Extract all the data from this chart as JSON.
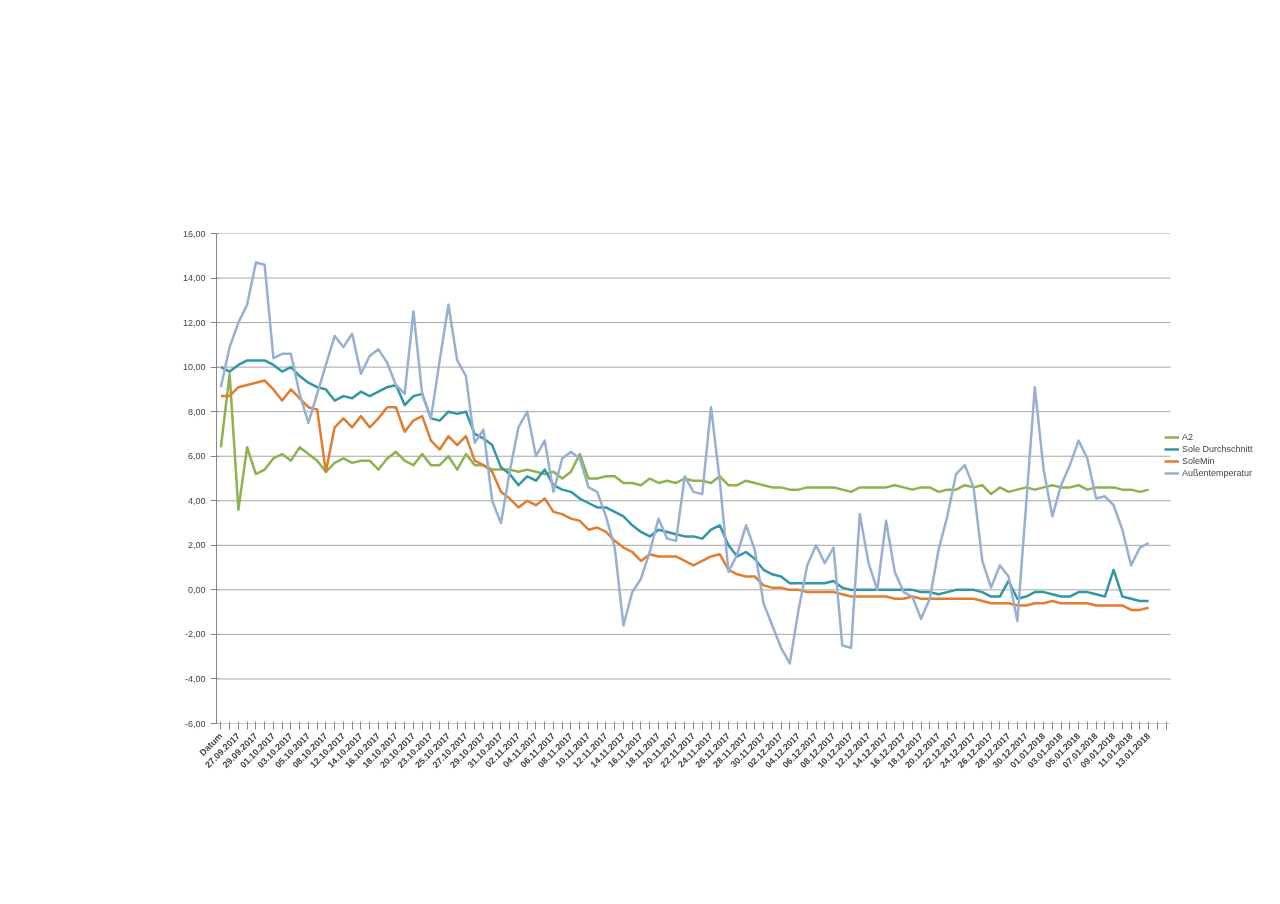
{
  "chart_data": {
    "type": "line",
    "categories": [
      "Datum",
      null,
      "27.09.2017",
      null,
      "29.09.2017",
      null,
      "01.10.2017",
      null,
      "03.10.2017",
      null,
      "05.10.2017",
      null,
      "08.10.2017",
      null,
      "12.10.2017",
      null,
      "14.10.2017",
      null,
      "16.10.2017",
      null,
      "18.10.2017",
      null,
      "20.10.2017",
      null,
      "23.10.2017",
      null,
      "25.10.2017",
      null,
      "27.10.2017",
      null,
      "29.10.2017",
      null,
      "31.10.2017",
      null,
      "02.11.2017",
      null,
      "04.11.2017",
      null,
      "06.11.2017",
      null,
      "08.11.2017",
      null,
      "10.11.2017",
      null,
      "12.11.2017",
      null,
      "14.11.2017",
      null,
      "16.11.2017",
      null,
      "18.11.2017",
      null,
      "20.11.2017",
      null,
      "22.11.2017",
      null,
      "24.11.2017",
      null,
      "26.11.2017",
      null,
      "28.11.2017",
      null,
      "30.11.2017",
      null,
      "02.12.2017",
      null,
      "04.12.2017",
      null,
      "06.12.2017",
      null,
      "08.12.2017",
      null,
      "10.12.2017",
      null,
      "12.12.2017",
      null,
      "14.12.2017",
      null,
      "16.12.2017",
      null,
      "18.12.2017",
      null,
      "20.12.2017",
      null,
      "22.12.2017",
      null,
      "24.12.2017",
      null,
      "26.12.2017",
      null,
      "28.12.2017",
      null,
      "30.12.2017",
      null,
      "01.01.2018",
      null,
      "03.01.2018",
      null,
      "05.01.2018",
      null,
      "07.01.2018",
      null,
      "09.01.2018",
      null,
      "11.01.2018",
      null,
      "13.01.2018",
      null,
      null
    ],
    "series": [
      {
        "name": "A2",
        "color": "#8db24e",
        "values": [
          6.4,
          9.7,
          3.6,
          6.4,
          5.2,
          5.4,
          5.9,
          6.1,
          5.8,
          6.4,
          6.1,
          5.8,
          5.3,
          5.7,
          5.9,
          5.7,
          5.8,
          5.8,
          5.4,
          5.9,
          6.2,
          5.8,
          5.6,
          6.1,
          5.6,
          5.6,
          6.0,
          5.4,
          6.1,
          5.6,
          5.6,
          5.4,
          5.4,
          5.4,
          5.3,
          5.4,
          5.3,
          5.2,
          5.3,
          5.0,
          5.3,
          6.1,
          5.0,
          5.0,
          5.1,
          5.1,
          4.8,
          4.8,
          4.7,
          5.0,
          4.8,
          4.9,
          4.8,
          5.0,
          4.9,
          4.9,
          4.8,
          5.1,
          4.7,
          4.7,
          4.9,
          4.8,
          4.7,
          4.6,
          4.6,
          4.5,
          4.5,
          4.6,
          4.6,
          4.6,
          4.6,
          4.5,
          4.4,
          4.6,
          4.6,
          4.6,
          4.6,
          4.7,
          4.6,
          4.5,
          4.6,
          4.6,
          4.4,
          4.5,
          4.5,
          4.7,
          4.6,
          4.7,
          4.3,
          4.6,
          4.4,
          4.5,
          4.6,
          4.5,
          4.6,
          4.7,
          4.6,
          4.6,
          4.7,
          4.5,
          4.6,
          4.6,
          4.6,
          4.5,
          4.5,
          4.4,
          4.5,
          null,
          null
        ]
      },
      {
        "name": "Sole Durchschnitt",
        "color": "#3296a5",
        "values": [
          10.0,
          9.8,
          10.1,
          10.3,
          10.3,
          10.3,
          10.1,
          9.8,
          10.0,
          9.6,
          9.3,
          9.1,
          9.0,
          8.5,
          8.7,
          8.6,
          8.9,
          8.7,
          8.9,
          9.1,
          9.2,
          8.3,
          8.7,
          8.8,
          7.7,
          7.6,
          8.0,
          7.9,
          8.0,
          7.0,
          6.8,
          6.5,
          5.5,
          5.2,
          4.7,
          5.1,
          4.9,
          5.4,
          4.7,
          4.5,
          4.4,
          4.1,
          3.9,
          3.7,
          3.7,
          3.5,
          3.3,
          2.9,
          2.6,
          2.4,
          2.7,
          2.6,
          2.5,
          2.4,
          2.4,
          2.3,
          2.7,
          2.9,
          2.0,
          1.5,
          1.7,
          1.4,
          0.9,
          0.7,
          0.6,
          0.3,
          0.3,
          0.3,
          0.3,
          0.3,
          0.4,
          0.1,
          0.0,
          0.0,
          0.0,
          0.0,
          0.0,
          0.0,
          0.0,
          0.0,
          -0.1,
          -0.1,
          -0.2,
          -0.1,
          0.0,
          0.0,
          0.0,
          -0.1,
          -0.3,
          -0.3,
          0.4,
          -0.4,
          -0.3,
          -0.1,
          -0.1,
          -0.2,
          -0.3,
          -0.3,
          -0.1,
          -0.1,
          -0.2,
          -0.3,
          0.9,
          -0.3,
          -0.4,
          -0.5,
          -0.5,
          null,
          null
        ]
      },
      {
        "name": "SoleMin",
        "color": "#e27d2e",
        "values": [
          8.7,
          8.7,
          9.1,
          9.2,
          9.3,
          9.4,
          9.0,
          8.5,
          9.0,
          8.6,
          8.2,
          8.1,
          5.3,
          7.3,
          7.7,
          7.3,
          7.8,
          7.3,
          7.7,
          8.2,
          8.2,
          7.1,
          7.6,
          7.8,
          6.7,
          6.3,
          6.9,
          6.5,
          6.9,
          5.8,
          5.6,
          5.3,
          4.4,
          4.1,
          3.7,
          4.0,
          3.8,
          4.1,
          3.5,
          3.4,
          3.2,
          3.1,
          2.7,
          2.8,
          2.6,
          2.2,
          1.9,
          1.7,
          1.3,
          1.6,
          1.5,
          1.5,
          1.5,
          1.3,
          1.1,
          1.3,
          1.5,
          1.6,
          0.9,
          0.7,
          0.6,
          0.6,
          0.2,
          0.1,
          0.1,
          0.0,
          0.0,
          -0.1,
          -0.1,
          -0.1,
          -0.1,
          -0.2,
          -0.3,
          -0.3,
          -0.3,
          -0.3,
          -0.3,
          -0.4,
          -0.4,
          -0.3,
          -0.4,
          -0.4,
          -0.4,
          -0.4,
          -0.4,
          -0.4,
          -0.4,
          -0.5,
          -0.6,
          -0.6,
          -0.6,
          -0.7,
          -0.7,
          -0.6,
          -0.6,
          -0.5,
          -0.6,
          -0.6,
          -0.6,
          -0.6,
          -0.7,
          -0.7,
          -0.7,
          -0.7,
          -0.9,
          -0.9,
          -0.8,
          null,
          null
        ]
      },
      {
        "name": "Außentemperatur",
        "color": "#97b0d2",
        "values": [
          9.1,
          10.9,
          12.0,
          12.8,
          14.7,
          14.6,
          10.4,
          10.6,
          10.6,
          8.8,
          7.5,
          8.8,
          10.1,
          11.4,
          10.9,
          11.5,
          9.7,
          10.5,
          10.8,
          10.2,
          9.2,
          8.8,
          12.5,
          8.8,
          7.7,
          10.3,
          12.8,
          10.3,
          9.6,
          6.6,
          7.2,
          4.0,
          3.0,
          5.3,
          7.3,
          8.0,
          6.0,
          6.7,
          4.4,
          5.9,
          6.2,
          5.9,
          4.6,
          4.4,
          3.3,
          1.9,
          -1.6,
          -0.1,
          0.5,
          1.7,
          3.2,
          2.3,
          2.2,
          5.1,
          4.4,
          4.3,
          8.2,
          4.9,
          0.8,
          1.6,
          2.9,
          1.8,
          -0.6,
          -1.6,
          -2.6,
          -3.3,
          -0.9,
          1.1,
          2.0,
          1.2,
          1.9,
          -2.5,
          -2.6,
          3.4,
          1.2,
          0.0,
          3.1,
          0.8,
          -0.1,
          -0.3,
          -1.3,
          -0.4,
          1.8,
          3.3,
          5.2,
          5.6,
          4.6,
          1.3,
          0.1,
          1.1,
          0.6,
          -1.4,
          3.8,
          9.1,
          5.4,
          3.3,
          4.7,
          5.6,
          6.7,
          5.9,
          4.1,
          4.2,
          3.8,
          2.7,
          1.1,
          1.9,
          2.1,
          null,
          null
        ]
      }
    ],
    "ylim": [
      -6,
      16
    ],
    "yticks": [
      {
        "value": -6,
        "label": "-6,00"
      },
      {
        "value": -4,
        "label": "-4,00"
      },
      {
        "value": -2,
        "label": "-2,00"
      },
      {
        "value": 0,
        "label": "0,00"
      },
      {
        "value": 2,
        "label": "2,00"
      },
      {
        "value": 4,
        "label": "4,00"
      },
      {
        "value": 6,
        "label": "6,00"
      },
      {
        "value": 8,
        "label": "8,00"
      },
      {
        "value": 10,
        "label": "10,00"
      },
      {
        "value": 12,
        "label": "12,00"
      },
      {
        "value": 14,
        "label": "14,00"
      },
      {
        "value": 16,
        "label": "16,00"
      }
    ],
    "grid": "y",
    "legend": "right",
    "marker": "none",
    "line_style": "solid"
  }
}
